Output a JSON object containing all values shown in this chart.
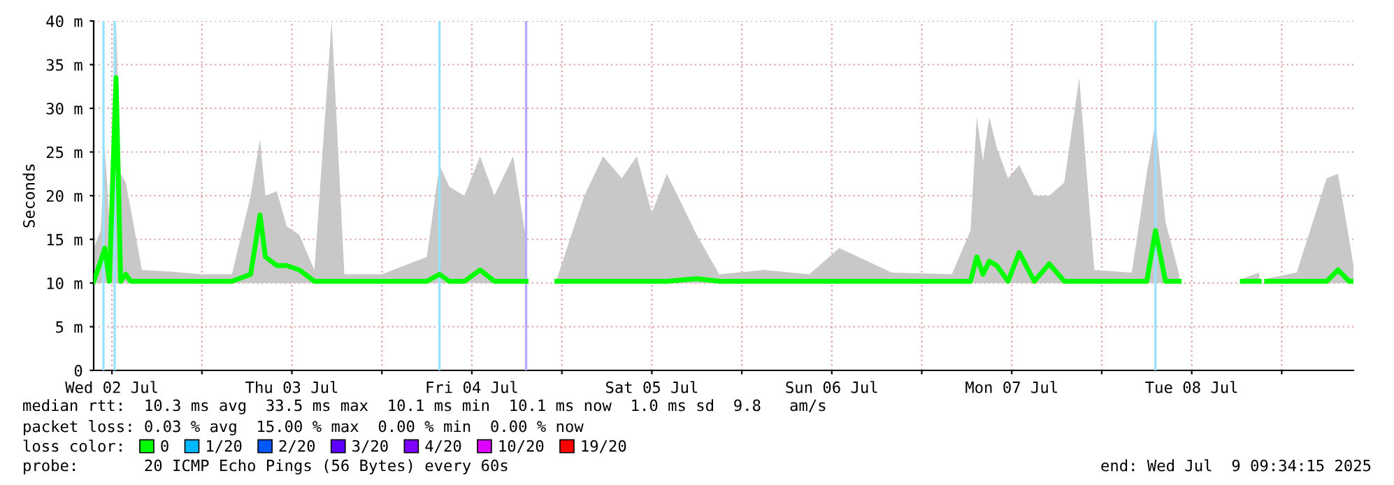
{
  "chart_data": {
    "type": "line",
    "ylabel": "Seconds",
    "x": [
      "2025-07-02T09:34",
      "2025-07-02T10:30",
      "2025-07-02T11:03",
      "2025-07-02T11:40",
      "2025-07-02T12:33",
      "2025-07-02T13:10",
      "2025-07-02T13:51",
      "2025-07-02T14:30",
      "2025-07-02T16:00",
      "2025-07-02T20:00",
      "2025-07-03T00:00",
      "2025-07-03T04:00",
      "2025-07-03T06:30",
      "2025-07-03T07:45",
      "2025-07-03T08:28",
      "2025-07-03T10:00",
      "2025-07-03T11:18",
      "2025-07-03T13:00",
      "2025-07-03T15:00",
      "2025-07-03T17:18",
      "2025-07-03T19:00",
      "2025-07-04T00:00",
      "2025-07-04T06:00",
      "2025-07-04T07:41",
      "2025-07-04T09:00",
      "2025-07-04T11:00",
      "2025-07-04T13:06",
      "2025-07-04T15:00",
      "2025-07-04T17:30",
      "2025-07-04T19:14",
      "2025-07-04T19:30",
      "2025-07-04T23:20",
      "2025-07-05T03:00",
      "2025-07-05T05:30",
      "2025-07-05T08:00",
      "2025-07-05T10:00",
      "2025-07-05T12:00",
      "2025-07-05T14:00",
      "2025-07-05T18:00",
      "2025-07-05T21:00",
      "2025-07-06T03:00",
      "2025-07-06T09:00",
      "2025-07-06T13:00",
      "2025-07-06T20:00",
      "2025-07-07T04:00",
      "2025-07-07T06:30",
      "2025-07-07T07:20",
      "2025-07-07T08:10",
      "2025-07-07T09:00",
      "2025-07-07T10:00",
      "2025-07-07T11:30",
      "2025-07-07T13:00",
      "2025-07-07T15:00",
      "2025-07-07T17:00",
      "2025-07-07T19:00",
      "2025-07-07T21:00",
      "2025-07-07T23:00",
      "2025-07-08T04:00",
      "2025-07-08T06:00",
      "2025-07-08T07:10",
      "2025-07-08T08:30",
      "2025-07-08T10:20",
      "2025-07-08T11:00",
      "2025-07-08T18:45",
      "2025-07-08T21:00",
      "2025-07-08T21:30",
      "2025-07-08T22:00",
      "2025-07-09T02:00",
      "2025-07-09T06:00",
      "2025-07-09T07:30",
      "2025-07-09T09:00",
      "2025-07-09T09:34"
    ],
    "series": [
      {
        "name": "0",
        "color": "#00ff00",
        "values": [
          10.2,
          12.5,
          14,
          10.2,
          33.5,
          10.2,
          11,
          10.2,
          10.2,
          10.2,
          10.2,
          10.2,
          11,
          17.8,
          13,
          12,
          12,
          11.5,
          10.2,
          10.2,
          10.2,
          10.2,
          10.2,
          11,
          10.2,
          10.2,
          11.5,
          10.2,
          10.2,
          10.2,
          null,
          10.2,
          10.2,
          10.2,
          10.2,
          10.2,
          10.2,
          10.2,
          10.5,
          10.2,
          10.2,
          10.2,
          10.2,
          10.2,
          10.2,
          10.2,
          13,
          11,
          12.5,
          12,
          10.2,
          13.5,
          10.2,
          12.2,
          10.2,
          10.2,
          10.2,
          10.2,
          10.2,
          16,
          10.2,
          10.2,
          null,
          10.2,
          10.2,
          null,
          10.2,
          10.2,
          10.2,
          11.5,
          10.2,
          10.2
        ],
        "lower": [
          10,
          10,
          10,
          10,
          10,
          10,
          10,
          10,
          10,
          10,
          10,
          10,
          10,
          10,
          10,
          10,
          10,
          10,
          10,
          10,
          10,
          10,
          10,
          10,
          10,
          10,
          10,
          10,
          10,
          10,
          null,
          10,
          10,
          10,
          10,
          10,
          10,
          10,
          10,
          10,
          10,
          10,
          10,
          10,
          10,
          10,
          10,
          10,
          10,
          10,
          10,
          10,
          10,
          10,
          10,
          10,
          10,
          10,
          10,
          10,
          10,
          10,
          null,
          10,
          10,
          null,
          10,
          10,
          10,
          10,
          10,
          10
        ],
        "upper": [
          14,
          16,
          25.5,
          17,
          40,
          22.5,
          21.5,
          18.5,
          11.5,
          11.3,
          11,
          11,
          20,
          26.5,
          20,
          20.5,
          16.5,
          15.5,
          11.5,
          40,
          11,
          11,
          13,
          23.5,
          21,
          20,
          24.5,
          20,
          24.5,
          15,
          null,
          10.5,
          20,
          24.5,
          22,
          24.5,
          18,
          22.5,
          15.5,
          11,
          11.5,
          11,
          14,
          11.2,
          11,
          16,
          29,
          24,
          29,
          25.5,
          22,
          23.5,
          20,
          20,
          21.5,
          33.5,
          11.5,
          11.2,
          22.5,
          28.5,
          17,
          11,
          null,
          10.5,
          11.2,
          null,
          10.5,
          11.2,
          22,
          22.5,
          15,
          12
        ]
      },
      {
        "name": "1/20",
        "color": "#00b8ff",
        "values": [
          null,
          null,
          null,
          null,
          null,
          null,
          null,
          null,
          null,
          null,
          null,
          null,
          null,
          null,
          null,
          null,
          null,
          null,
          null,
          null,
          null,
          null,
          null,
          null,
          null,
          null,
          null,
          null,
          null,
          null,
          null,
          null,
          null,
          null,
          null,
          null,
          null,
          null,
          null,
          null,
          null,
          null,
          null,
          null,
          null,
          null,
          null,
          null,
          null,
          null,
          null,
          null,
          null,
          null,
          null,
          null,
          null,
          null,
          null,
          null,
          null,
          null,
          null,
          null,
          null,
          null,
          null,
          null,
          null,
          null,
          null,
          null
        ]
      },
      {
        "name": "2/20",
        "color": "#0059ff",
        "values": [
          null,
          null,
          null,
          null,
          null,
          null,
          null,
          null,
          null,
          null,
          null,
          null,
          null,
          null,
          null,
          null,
          null,
          null,
          null,
          null,
          null,
          null,
          null,
          null,
          null,
          null,
          null,
          null,
          null,
          null,
          null,
          null,
          null,
          null,
          null,
          null,
          null,
          null,
          null,
          null,
          null,
          null,
          null,
          null,
          null,
          null,
          null,
          null,
          null,
          null,
          null,
          null,
          null,
          null,
          null,
          null,
          null,
          null,
          null,
          null,
          null,
          null,
          null,
          null,
          null,
          null,
          null,
          null,
          null,
          null,
          null,
          null
        ]
      },
      {
        "name": "3/20",
        "color": "#5e00ff",
        "values": [
          null,
          null,
          null,
          null,
          null,
          null,
          null,
          null,
          null,
          null,
          null,
          null,
          null,
          null,
          null,
          null,
          null,
          null,
          null,
          null,
          null,
          null,
          null,
          null,
          null,
          null,
          null,
          null,
          null,
          null,
          null,
          null,
          null,
          null,
          null,
          null,
          null,
          null,
          null,
          null,
          null,
          null,
          null,
          null,
          null,
          null,
          null,
          null,
          null,
          null,
          null,
          null,
          null,
          null,
          null,
          null,
          null,
          null,
          null,
          null,
          null,
          null,
          null,
          null,
          null,
          null,
          null,
          null,
          null,
          null,
          null,
          null
        ]
      },
      {
        "name": "4/20",
        "color": "#7e00ff",
        "values": [
          null,
          null,
          null,
          null,
          null,
          null,
          null,
          null,
          null,
          null,
          null,
          null,
          null,
          null,
          null,
          null,
          null,
          null,
          null,
          null,
          null,
          null,
          null,
          null,
          null,
          null,
          null,
          null,
          null,
          null,
          null,
          null,
          null,
          null,
          null,
          null,
          null,
          null,
          null,
          null,
          null,
          null,
          null,
          null,
          null,
          null,
          null,
          null,
          null,
          null,
          null,
          null,
          null,
          null,
          null,
          null,
          null,
          null,
          null,
          null,
          null,
          null,
          null,
          null,
          null,
          null,
          null,
          null,
          null,
          null,
          null,
          null
        ]
      },
      {
        "name": "10/20",
        "color": "#dd00ff",
        "values": [
          null,
          null,
          null,
          null,
          null,
          null,
          null,
          null,
          null,
          null,
          null,
          null,
          null,
          null,
          null,
          null,
          null,
          null,
          null,
          null,
          null,
          null,
          null,
          null,
          null,
          null,
          null,
          null,
          null,
          null,
          null,
          null,
          null,
          null,
          null,
          null,
          null,
          null,
          null,
          null,
          null,
          null,
          null,
          null,
          null,
          null,
          null,
          null,
          null,
          null,
          null,
          null,
          null,
          null,
          null,
          null,
          null,
          null,
          null,
          null,
          null,
          null,
          null,
          null,
          null,
          null,
          null,
          null,
          null,
          null,
          null,
          null
        ]
      },
      {
        "name": "19/20",
        "color": "#ff0000",
        "values": [
          null,
          null,
          null,
          null,
          null,
          null,
          null,
          null,
          null,
          null,
          null,
          null,
          null,
          null,
          null,
          null,
          null,
          null,
          null,
          null,
          null,
          null,
          null,
          null,
          null,
          null,
          null,
          null,
          null,
          null,
          null,
          null,
          null,
          null,
          null,
          null,
          null,
          null,
          null,
          null,
          null,
          null,
          null,
          null,
          null,
          null,
          null,
          null,
          null,
          null,
          null,
          null,
          null,
          null,
          null,
          null,
          null,
          null,
          null,
          null,
          null,
          null,
          null,
          null,
          null,
          null,
          null,
          null,
          null,
          null,
          null,
          null
        ]
      }
    ],
    "legend": "bottom left",
    "legend_title": "loss color:",
    "ref_lines": [
      {
        "axis": "x",
        "value": "2025-07-02T10:52",
        "color": "#99e2ff"
      },
      {
        "axis": "x",
        "value": "2025-07-02T12:22",
        "color": "#99e2ff"
      },
      {
        "axis": "x",
        "value": "2025-07-04T07:41",
        "color": "#99e2ff"
      },
      {
        "axis": "x",
        "value": "2025-07-04T19:14",
        "color": "#b9a6ff"
      },
      {
        "axis": "x",
        "value": "2025-07-08T07:10",
        "color": "#99e2ff"
      }
    ],
    "xlim": [
      "2025-07-02T09:34",
      "2025-07-09T09:34"
    ],
    "xticks": [
      {
        "value": "2025-07-02T12:00",
        "label": "Wed 02 Jul"
      },
      {
        "value": "2025-07-03T00:00",
        "label": null
      },
      {
        "value": "2025-07-03T12:00",
        "label": "Thu 03 Jul"
      },
      {
        "value": "2025-07-04T00:00",
        "label": null
      },
      {
        "value": "2025-07-04T12:00",
        "label": "Fri 04 Jul"
      },
      {
        "value": "2025-07-05T00:00",
        "label": null
      },
      {
        "value": "2025-07-05T12:00",
        "label": "Sat 05 Jul"
      },
      {
        "value": "2025-07-06T00:00",
        "label": null
      },
      {
        "value": "2025-07-06T12:00",
        "label": "Sun 06 Jul"
      },
      {
        "value": "2025-07-07T00:00",
        "label": null
      },
      {
        "value": "2025-07-07T12:00",
        "label": "Mon 07 Jul"
      },
      {
        "value": "2025-07-08T00:00",
        "label": null
      },
      {
        "value": "2025-07-08T12:00",
        "label": "Tue 08 Jul"
      },
      {
        "value": "2025-07-09T00:00",
        "label": null
      }
    ],
    "ylim": [
      0,
      40
    ],
    "yticks": [
      0,
      {
        "value": 5,
        "label": "5 m"
      },
      {
        "value": 10,
        "label": "10 m"
      },
      {
        "value": 15,
        "label": "15 m"
      },
      {
        "value": 20,
        "label": "20 m"
      },
      {
        "value": 25,
        "label": "25 m"
      },
      {
        "value": 30,
        "label": "30 m"
      },
      {
        "value": 35,
        "label": "35 m"
      },
      {
        "value": 40,
        "label": "40 m"
      }
    ],
    "grid": true,
    "annotations": [
      "median rtt:  10.3 ms avg  33.5 ms max  10.1 ms min  10.1 ms now  1.0 ms sd  9.8   am/s",
      "packet loss: 0.03 % avg  15.00 % max  0.00 % min  0.00 % now",
      "probe:       20 ICMP Echo Pings (56 Bytes) every 60s",
      "end: Wed Jul  9 09:34:15 2025"
    ]
  }
}
